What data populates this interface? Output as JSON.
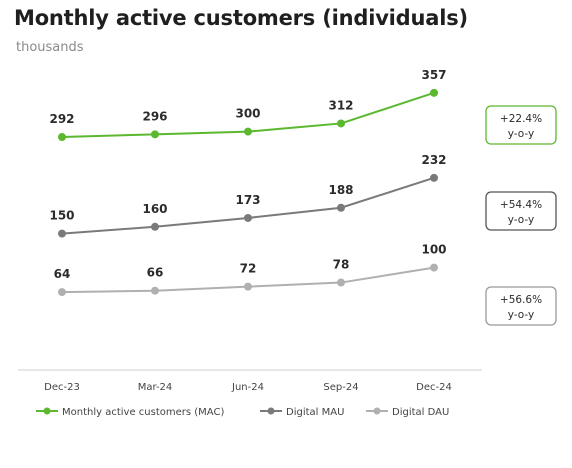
{
  "title": "Monthly active customers (individuals)",
  "subtitle": "thousands",
  "chart_data": {
    "type": "line",
    "categories": [
      "Dec-23",
      "Mar-24",
      "Jun-24",
      "Sep-24",
      "Dec-24"
    ],
    "series": [
      {
        "name": "Monthly active customers (MAC)",
        "values": [
          292,
          296,
          300,
          312,
          357
        ],
        "color": "#5bb82f",
        "growth": "+22.4%",
        "growth_label": "y-o-y",
        "box_border": "#5bb82f"
      },
      {
        "name": "Digital MAU",
        "values": [
          150,
          160,
          173,
          188,
          232
        ],
        "color": "#7a7a7a",
        "growth": "+54.4%",
        "growth_label": "y-o-y",
        "box_border": "#555555"
      },
      {
        "name": "Digital DAU",
        "values": [
          64,
          66,
          72,
          78,
          100
        ],
        "color": "#b0b0b0",
        "growth": "+56.6%",
        "growth_label": "y-o-y",
        "box_border": "#9a9a9a"
      }
    ],
    "legend_position": "bottom",
    "grid": false
  }
}
